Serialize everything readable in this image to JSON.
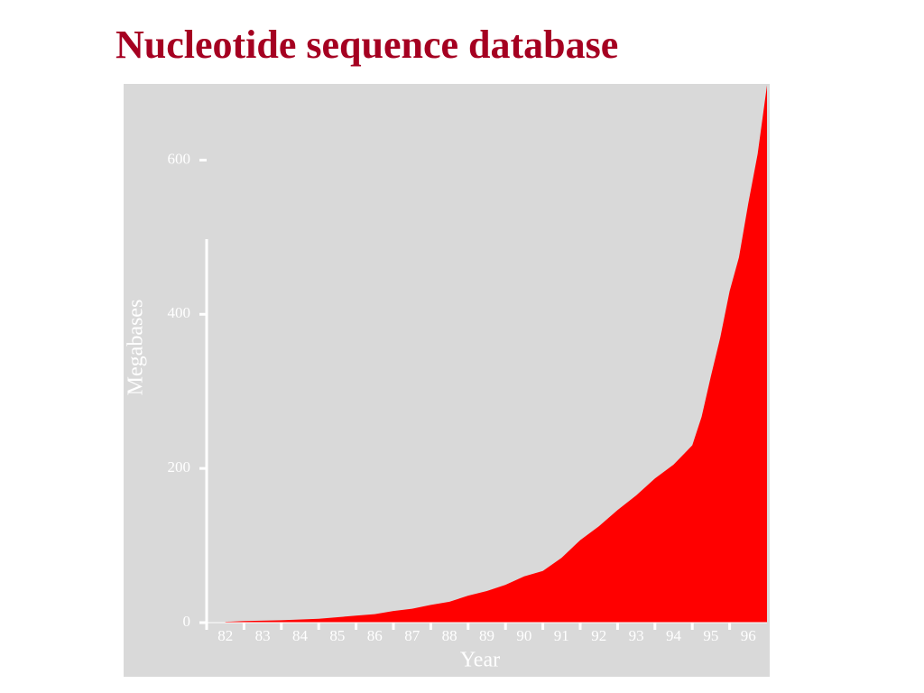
{
  "chart_data": {
    "type": "area",
    "title": "Nucleotide sequence database",
    "x_label": "Year",
    "y_label": "Megabases",
    "x": [
      82.5,
      83,
      84,
      85,
      86,
      86.5,
      87,
      87.5,
      88,
      88.5,
      89,
      89.5,
      90,
      90.5,
      91,
      91.5,
      92,
      92.5,
      93,
      93.5,
      94,
      94.5,
      95,
      95.25,
      95.5,
      95.75,
      96,
      96.25,
      96.5,
      96.75,
      97
    ],
    "values": [
      1,
      2,
      3,
      5,
      9,
      11,
      15,
      18,
      23,
      27,
      35,
      41,
      49,
      60,
      67,
      84,
      107,
      125,
      146,
      165,
      187,
      205,
      230,
      267,
      320,
      370,
      430,
      474,
      544,
      608,
      697
    ],
    "color": "#ff0000",
    "xlim": [
      82,
      97
    ],
    "ylim": [
      0,
      700
    ],
    "yticks": [
      0,
      200,
      400,
      600
    ],
    "xticks": [
      {
        "value": 82.5,
        "label": "82"
      },
      {
        "value": 83.5,
        "label": "83"
      },
      {
        "value": 84.5,
        "label": "84"
      },
      {
        "value": 85.5,
        "label": "85"
      },
      {
        "value": 86.5,
        "label": "86"
      },
      {
        "value": 87.5,
        "label": "87"
      },
      {
        "value": 88.5,
        "label": "88"
      },
      {
        "value": 89.5,
        "label": "89"
      },
      {
        "value": 90.5,
        "label": "90"
      },
      {
        "value": 91.5,
        "label": "91"
      },
      {
        "value": 92.5,
        "label": "92"
      },
      {
        "value": 93.5,
        "label": "93"
      },
      {
        "value": 94.5,
        "label": "94"
      },
      {
        "value": 95.5,
        "label": "95"
      },
      {
        "value": 96.5,
        "label": "96"
      }
    ]
  }
}
